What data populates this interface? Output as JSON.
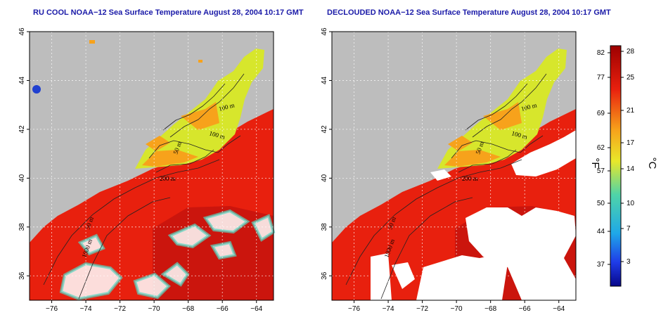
{
  "titles": {
    "left": "RU COOL NOAA−12 Sea Surface Temperature August 28, 2004 10:17 GMT",
    "right": "DECLOUDED NOAA−12 Sea Surface Temperature August 28, 2004 10:17 GMT"
  },
  "map": {
    "lon_ticks": [
      "−76",
      "−74",
      "−72",
      "−70",
      "−68",
      "−66",
      "−64"
    ],
    "lat_ticks": [
      "46",
      "44",
      "42",
      "40",
      "38",
      "36"
    ],
    "lon_range": [
      -77.3,
      -63.0
    ],
    "lat_range": [
      35.0,
      46.0
    ],
    "contour_labels": [
      "100 m",
      "100 m",
      "50 m",
      "200 m",
      "50 m",
      "1000 m"
    ]
  },
  "colorbar": {
    "fahrenheit_ticks": [
      "82",
      "77",
      "69",
      "62",
      "57",
      "50",
      "44",
      "37"
    ],
    "celsius_ticks": [
      "28",
      "25",
      "21",
      "17",
      "14",
      "10",
      "7",
      "3"
    ],
    "fahrenheit_unit": "°F",
    "celsius_unit": "°C"
  },
  "colors": {
    "land": "#bdbdbd",
    "cloud": "#ffffff",
    "warm": "#e8200e",
    "hot": "#b20d0d",
    "mild": "#f7a21b",
    "cool": "#d7e62c",
    "cold": "#58d4c0",
    "title": "#1a1aa8"
  }
}
